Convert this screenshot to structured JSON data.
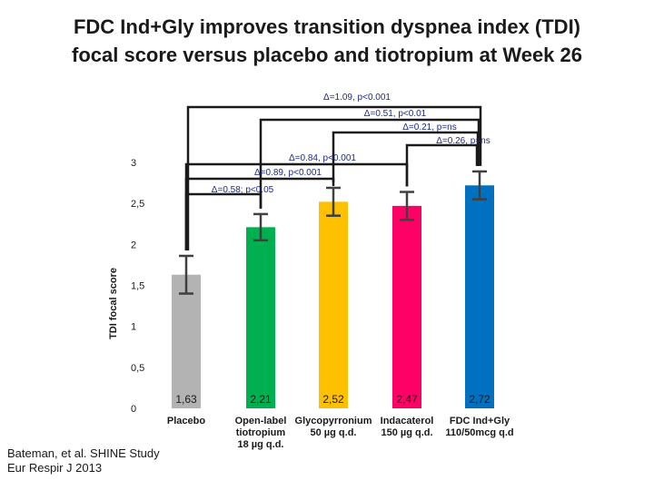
{
  "title": {
    "line1": "FDC Ind+Gly improves transition dyspnea index (TDI)",
    "line2": "focal score versus placebo and tiotropium at Week 26"
  },
  "footnote": {
    "line1": "Bateman, et al. SHINE Study",
    "line2": "Eur Respir J 2013"
  },
  "colors": {
    "placebo": "#b3b3b3",
    "tiotropium": "#00b050",
    "glycopyrronium": "#ffc000",
    "indacaterol": "#ff0066",
    "fdc": "#0070c0",
    "bracket": "#1a1a1a",
    "annotation": "#1a2a8a",
    "error_bar": "#404040"
  },
  "chart_data": {
    "type": "bar",
    "ylabel": "TDI focal score",
    "ylim": [
      0,
      3
    ],
    "yticks": [
      {
        "value": 0,
        "label": "0"
      },
      {
        "value": 0.5,
        "label": "0,5"
      },
      {
        "value": 1,
        "label": "1"
      },
      {
        "value": 1.5,
        "label": "1,5"
      },
      {
        "value": 2,
        "label": "2"
      },
      {
        "value": 2.5,
        "label": "2,5"
      },
      {
        "value": 3,
        "label": "3"
      }
    ],
    "bars": [
      {
        "key": "placebo",
        "label_lines": [
          "Placebo"
        ],
        "value": 1.63,
        "value_label": "1,63",
        "err_low": 1.4,
        "err_high": 1.86
      },
      {
        "key": "tiotropium",
        "label_lines": [
          "Open-label",
          "tiotropium",
          "18 µg q.d."
        ],
        "value": 2.21,
        "value_label": "2,21",
        "err_low": 2.05,
        "err_high": 2.37
      },
      {
        "key": "glycopyrronium",
        "label_lines": [
          "Glycopyrronium",
          "50 µg q.d."
        ],
        "value": 2.52,
        "value_label": "2,52",
        "err_low": 2.35,
        "err_high": 2.69
      },
      {
        "key": "indacaterol",
        "label_lines": [
          "Indacaterol",
          "150 µg q.d."
        ],
        "value": 2.47,
        "value_label": "2,47",
        "err_low": 2.3,
        "err_high": 2.64
      },
      {
        "key": "fdc",
        "label_lines": [
          "FDC Ind+Gly",
          "110/50mcg q.d"
        ],
        "value": 2.72,
        "value_label": "2,72",
        "err_low": 2.55,
        "err_high": 2.89
      }
    ],
    "comparisons": [
      {
        "label": "Δ=1.09, p<0.001",
        "from": "placebo",
        "to": "fdc"
      },
      {
        "label": "Δ=0.51, p<0.01",
        "from": "tiotropium",
        "to": "fdc"
      },
      {
        "label": "Δ=0.21, p=ns",
        "from": "glycopyrronium",
        "to": "fdc"
      },
      {
        "label": "Δ=0.26, p=ns",
        "from": "indacaterol",
        "to": "fdc"
      },
      {
        "label": "Δ=0.84, p<0.001",
        "from": "placebo",
        "to": "indacaterol"
      },
      {
        "label": "Δ=0.89, p<0.001",
        "from": "placebo",
        "to": "glycopyrronium"
      },
      {
        "label": "Δ=0.58; p<0.05",
        "from": "placebo",
        "to": "tiotropium"
      }
    ]
  }
}
